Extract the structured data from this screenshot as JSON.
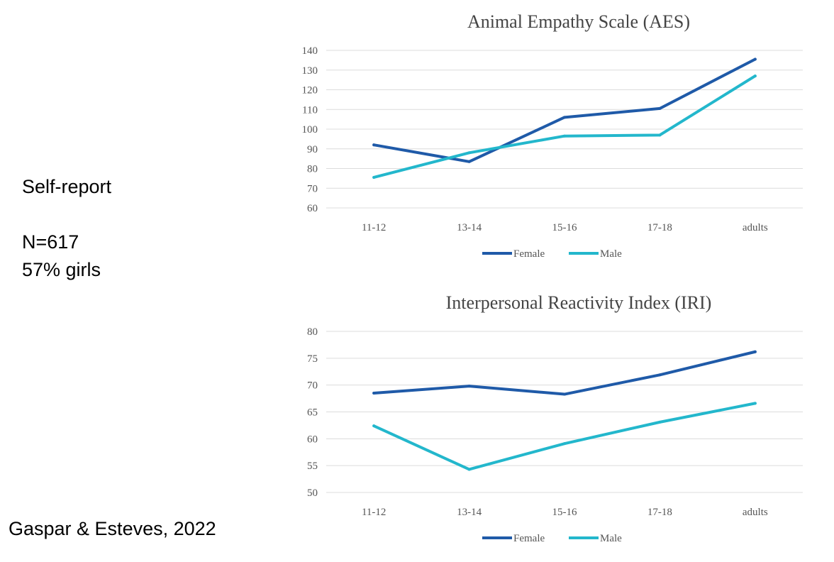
{
  "side": {
    "method": "Self-report",
    "sample_n": "N=617",
    "sample_girls": "57% girls",
    "citation": "Gaspar & Esteves, 2022"
  },
  "colors": {
    "female": "#1f5aa8",
    "male": "#23b7cc",
    "grid": "#dcdcdc"
  },
  "chart_data": [
    {
      "type": "line",
      "title": "Animal Empathy Scale (AES)",
      "xlabel": "",
      "ylabel": "",
      "categories": [
        "11-12",
        "13-14",
        "15-16",
        "17-18",
        "adults"
      ],
      "ylim": [
        60,
        140
      ],
      "yticks": [
        60,
        70,
        80,
        90,
        100,
        110,
        120,
        130,
        140
      ],
      "grid": true,
      "legend_position": "bottom",
      "series": [
        {
          "name": "Female",
          "values": [
            92,
            83.5,
            106,
            110.5,
            135.5
          ]
        },
        {
          "name": "Male",
          "values": [
            75.5,
            88,
            96.5,
            97,
            127
          ]
        }
      ]
    },
    {
      "type": "line",
      "title": "Interpersonal Reactivity Index (IRI)",
      "xlabel": "",
      "ylabel": "",
      "categories": [
        "11-12",
        "13-14",
        "15-16",
        "17-18",
        "adults"
      ],
      "ylim": [
        50,
        80
      ],
      "yticks": [
        50,
        55,
        60,
        65,
        70,
        75,
        80
      ],
      "grid": true,
      "legend_position": "bottom",
      "series": [
        {
          "name": "Female",
          "values": [
            68.5,
            69.8,
            68.3,
            71.9,
            76.2
          ]
        },
        {
          "name": "Male",
          "values": [
            62.4,
            54.3,
            59.1,
            63.1,
            66.6
          ]
        }
      ]
    }
  ]
}
